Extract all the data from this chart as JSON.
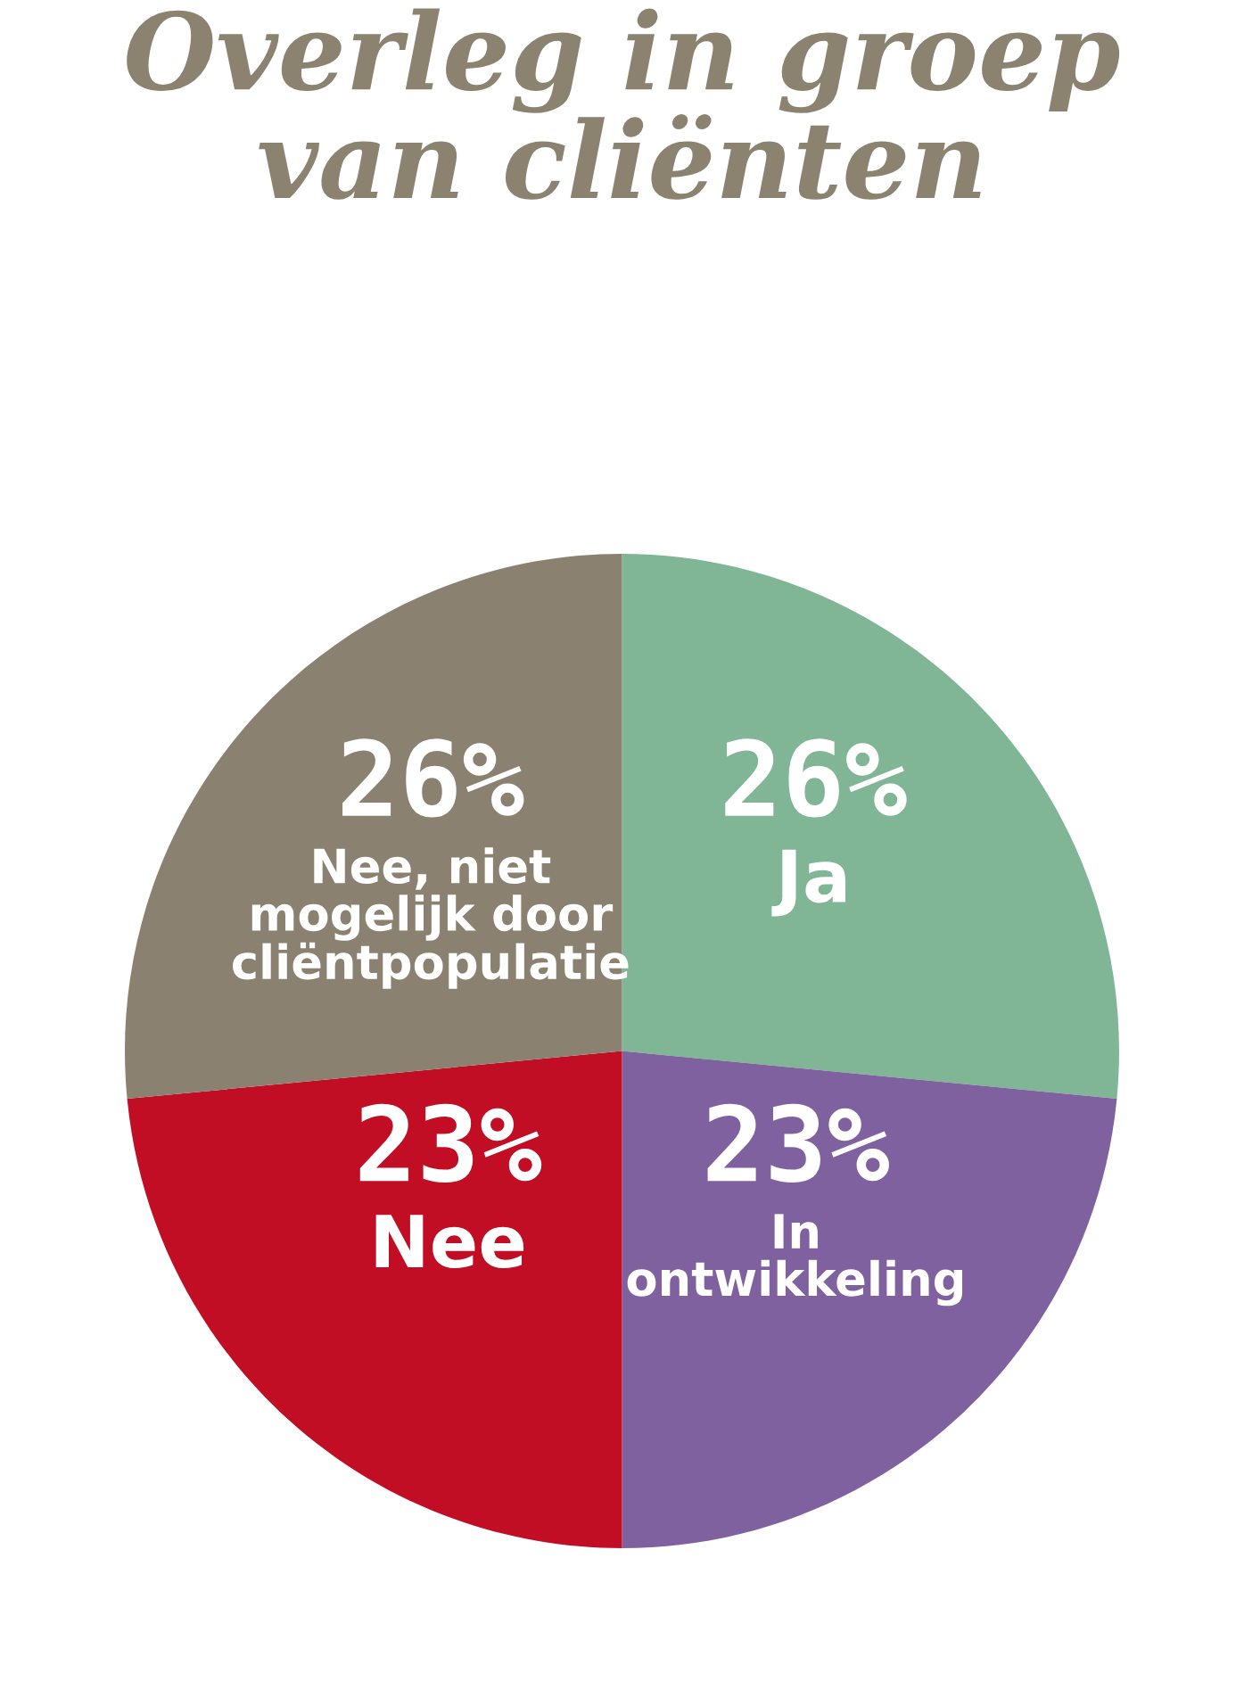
{
  "chart_data": {
    "type": "pie",
    "title": "Overleg in groep\nvan cliënten",
    "categories": [
      "Ja",
      "In\nontwikkeling",
      "Nee",
      "Nee, niet\nmogelijk door\ncliëntpopulatie"
    ],
    "values": [
      26,
      23,
      23,
      26
    ],
    "value_labels": [
      "26%",
      "23%",
      "23%",
      "26%"
    ],
    "colors": [
      "#80b696",
      "#8061a0",
      "#c20e24",
      "#8b8170"
    ],
    "legend": false
  }
}
